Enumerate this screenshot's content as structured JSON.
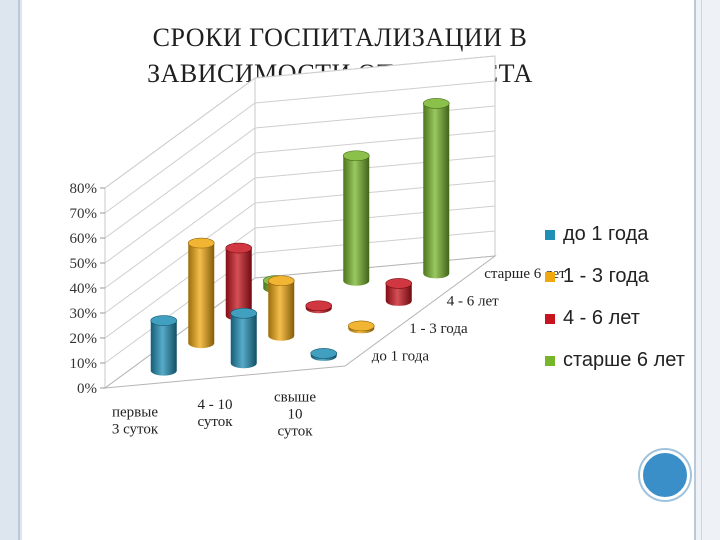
{
  "title_line1": "СРОКИ ГОСПИТАЛИЗАЦИИ В",
  "title_line2": "ЗАВИСИМОСТИ ОТ ВОЗРАСТА",
  "chart_data": {
    "type": "bar",
    "subtype": "3d-column",
    "categories": [
      "первые 3 суток",
      "4 - 10 суток",
      "свыше 10 суток"
    ],
    "series": [
      {
        "name": "до 1 года",
        "color": "#1f8fb5",
        "values": [
          20,
          20,
          1
        ]
      },
      {
        "name": "1 - 3 года",
        "color": "#f0a80f",
        "values": [
          40,
          22,
          1
        ]
      },
      {
        "name": "4 - 6 лет",
        "color": "#c8141e",
        "values": [
          27,
          1,
          7
        ]
      },
      {
        "name": "старше 6 лет",
        "color": "#77b52b",
        "values": [
          3,
          50,
          68
        ]
      }
    ],
    "yticks": [
      "0%",
      "10%",
      "20%",
      "30%",
      "40%",
      "50%",
      "60%",
      "70%",
      "80%"
    ],
    "ylim": [
      0,
      80
    ],
    "depth_labels": [
      "до 1 года",
      "1 - 3 года",
      "4 - 6 лет",
      "старше 6 лет"
    ],
    "x_tick_lines": [
      [
        "первые",
        "3 суток"
      ],
      [
        "4 - 10",
        "суток"
      ],
      [
        "свыше",
        "10",
        "суток"
      ]
    ],
    "legend": {
      "position": "right",
      "items": [
        "до 1 года",
        "1 - 3 года",
        "4 - 6 лет",
        "старше 6 лет"
      ]
    },
    "grid": true
  }
}
